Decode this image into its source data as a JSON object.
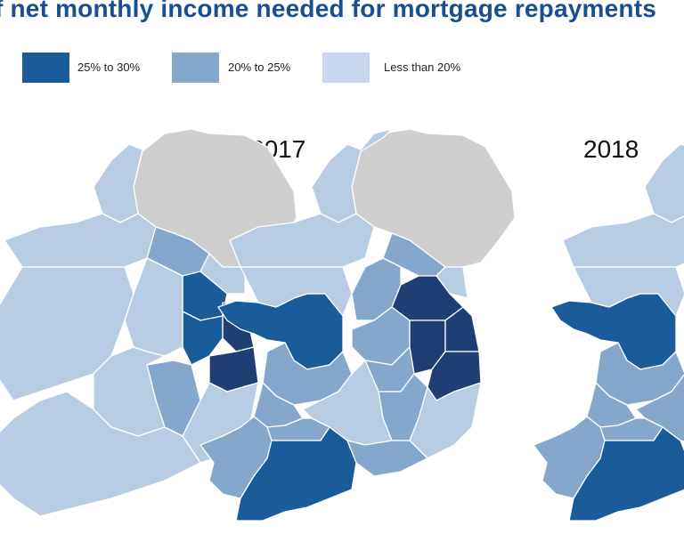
{
  "title": "f net monthly income needed for mortgage repayments",
  "legend": [
    {
      "label": "25% to 30%",
      "color": "#1f3e73"
    },
    {
      "label": "20% to 25%",
      "color": "#85a7cc"
    },
    {
      "label": "Less than 20%",
      "color": "#c9d8ee"
    }
  ],
  "colors": {
    "band_25_30_light": "#1a5c9a",
    "band_25_30_dark": "#1f3e73",
    "band_20_25": "#85a7cc",
    "band_lt_20": "#b8cde4",
    "northern_ireland": "#cfcfcf"
  },
  "maps": [
    {
      "year": ""
    },
    {
      "year": "2017"
    },
    {
      "year": "2018"
    }
  ]
}
